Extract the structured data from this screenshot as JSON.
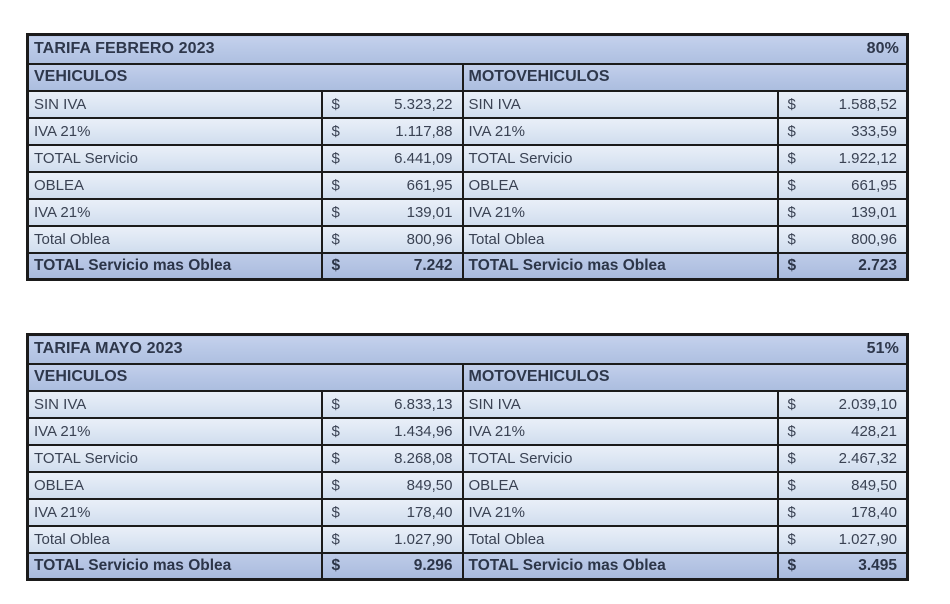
{
  "tables": [
    {
      "title": "TARIFA FEBRERO 2023",
      "percent": "80%",
      "currency_symbol": "$",
      "sections": [
        {
          "header": "VEHICULOS",
          "rows": [
            {
              "label": "SIN IVA",
              "value": "5.323,22",
              "is_total": false
            },
            {
              "label": "IVA 21%",
              "value": "1.117,88",
              "is_total": false
            },
            {
              "label": "TOTAL Servicio",
              "value": "6.441,09",
              "is_total": false
            },
            {
              "label": "OBLEA",
              "value": "661,95",
              "is_total": false
            },
            {
              "label": "IVA 21%",
              "value": "139,01",
              "is_total": false
            },
            {
              "label": "Total Oblea",
              "value": "800,96",
              "is_total": false
            },
            {
              "label": "TOTAL Servicio mas Oblea",
              "value": "7.242",
              "is_total": true
            }
          ]
        },
        {
          "header": "MOTOVEHICULOS",
          "rows": [
            {
              "label": "SIN IVA",
              "value": "1.588,52",
              "is_total": false
            },
            {
              "label": "IVA 21%",
              "value": "333,59",
              "is_total": false
            },
            {
              "label": "TOTAL Servicio",
              "value": "1.922,12",
              "is_total": false
            },
            {
              "label": "OBLEA",
              "value": "661,95",
              "is_total": false
            },
            {
              "label": "IVA 21%",
              "value": "139,01",
              "is_total": false
            },
            {
              "label": "Total Oblea",
              "value": "800,96",
              "is_total": false
            },
            {
              "label": "TOTAL Servicio mas Oblea",
              "value": "2.723",
              "is_total": true
            }
          ]
        }
      ]
    },
    {
      "title": "TARIFA MAYO 2023",
      "percent": "51%",
      "currency_symbol": "$",
      "sections": [
        {
          "header": "VEHICULOS",
          "rows": [
            {
              "label": "SIN IVA",
              "value": "6.833,13",
              "is_total": false
            },
            {
              "label": "IVA 21%",
              "value": "1.434,96",
              "is_total": false
            },
            {
              "label": "TOTAL Servicio",
              "value": "8.268,08",
              "is_total": false
            },
            {
              "label": "OBLEA",
              "value": "849,50",
              "is_total": false
            },
            {
              "label": "IVA 21%",
              "value": "178,40",
              "is_total": false
            },
            {
              "label": "Total Oblea",
              "value": "1.027,90",
              "is_total": false
            },
            {
              "label": "TOTAL Servicio mas Oblea",
              "value": "9.296",
              "is_total": true
            }
          ]
        },
        {
          "header": "MOTOVEHICULOS",
          "rows": [
            {
              "label": "SIN IVA",
              "value": "2.039,10",
              "is_total": false
            },
            {
              "label": "IVA 21%",
              "value": "428,21",
              "is_total": false
            },
            {
              "label": "TOTAL Servicio",
              "value": "2.467,32",
              "is_total": false
            },
            {
              "label": "OBLEA",
              "value": "849,50",
              "is_total": false
            },
            {
              "label": "IVA 21%",
              "value": "178,40",
              "is_total": false
            },
            {
              "label": "Total Oblea",
              "value": "1.027,90",
              "is_total": false
            },
            {
              "label": "TOTAL Servicio mas Oblea",
              "value": "3.495",
              "is_total": true
            }
          ]
        }
      ]
    }
  ]
}
